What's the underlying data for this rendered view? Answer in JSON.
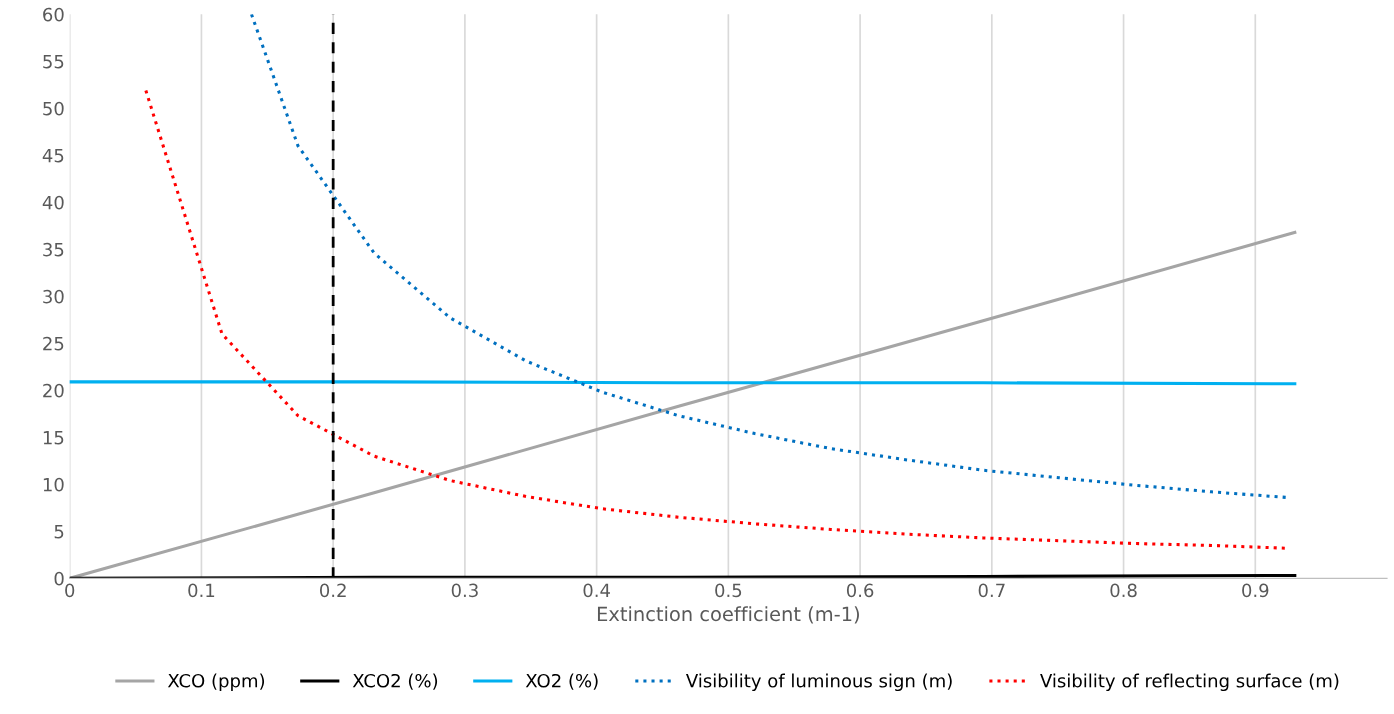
{
  "chart_data": {
    "type": "line",
    "xlabel": "Extinction coefficient (m-1)",
    "xlim": [
      0,
      1
    ],
    "xticks": [
      0,
      0.1,
      0.2,
      0.3,
      0.4,
      0.5,
      0.6,
      0.7,
      0.8,
      0.9
    ],
    "ylim": [
      0,
      60
    ],
    "yticks": [
      0,
      5,
      10,
      15,
      20,
      25,
      30,
      35,
      40,
      45,
      50,
      55,
      60
    ],
    "grid": "x",
    "legend": "bottom",
    "marker": "none",
    "series": [
      {
        "name": "XCO (ppm)",
        "color": "#a5a5a5",
        "line_style": "solid",
        "x": [
          0,
          0.2311,
          0.4622,
          0.6933,
          0.93
        ],
        "values": [
          0,
          9.1,
          18.3,
          27.4,
          36.8
        ]
      },
      {
        "name": "XCO2 (%)",
        "color": "#000000",
        "line_style": "solid",
        "x": [
          0,
          0.2311,
          0.4622,
          0.6933,
          0.93
        ],
        "values": [
          0,
          0.1,
          0.1,
          0.2,
          0.3
        ]
      },
      {
        "name": "XO2 (%)",
        "color": "#00b0f0",
        "line_style": "solid",
        "x": [
          0,
          0.2311,
          0.4622,
          0.6933,
          0.93
        ],
        "values": [
          20.9,
          20.9,
          20.8,
          20.8,
          20.7
        ]
      },
      {
        "name": "Visibility of luminous sign (m)",
        "color": "#0070c0",
        "line_style": "dotted",
        "x": [
          0.138,
          0.1733,
          0.2311,
          0.2889,
          0.3467,
          0.4044,
          0.4622,
          0.52,
          0.5778,
          0.6356,
          0.6933,
          0.7511,
          0.8089,
          0.8667,
          0.9244
        ],
        "values": [
          60,
          46,
          34.6,
          27.7,
          23.1,
          19.8,
          17.3,
          15.4,
          13.8,
          12.6,
          11.5,
          10.7,
          9.9,
          9.2,
          8.6
        ]
      },
      {
        "name": "Visibility of reflecting surface (m)",
        "color": "#ff0000",
        "line_style": "dotted",
        "x": [
          0.0578,
          0.1156,
          0.1733,
          0.2311,
          0.2889,
          0.3467,
          0.4044,
          0.4622,
          0.52,
          0.5778,
          0.6356,
          0.6933,
          0.7511,
          0.8089,
          0.8667,
          0.9244
        ],
        "values": [
          51.9,
          26,
          17.3,
          13,
          10.4,
          8.7,
          7.4,
          6.5,
          5.8,
          5.2,
          4.7,
          4.3,
          4.0,
          3.7,
          3.5,
          3.2
        ]
      }
    ],
    "ref_lines": [
      {
        "axis": "x",
        "value": 0.2,
        "color": "#000000",
        "line_style": "dashed"
      }
    ]
  }
}
